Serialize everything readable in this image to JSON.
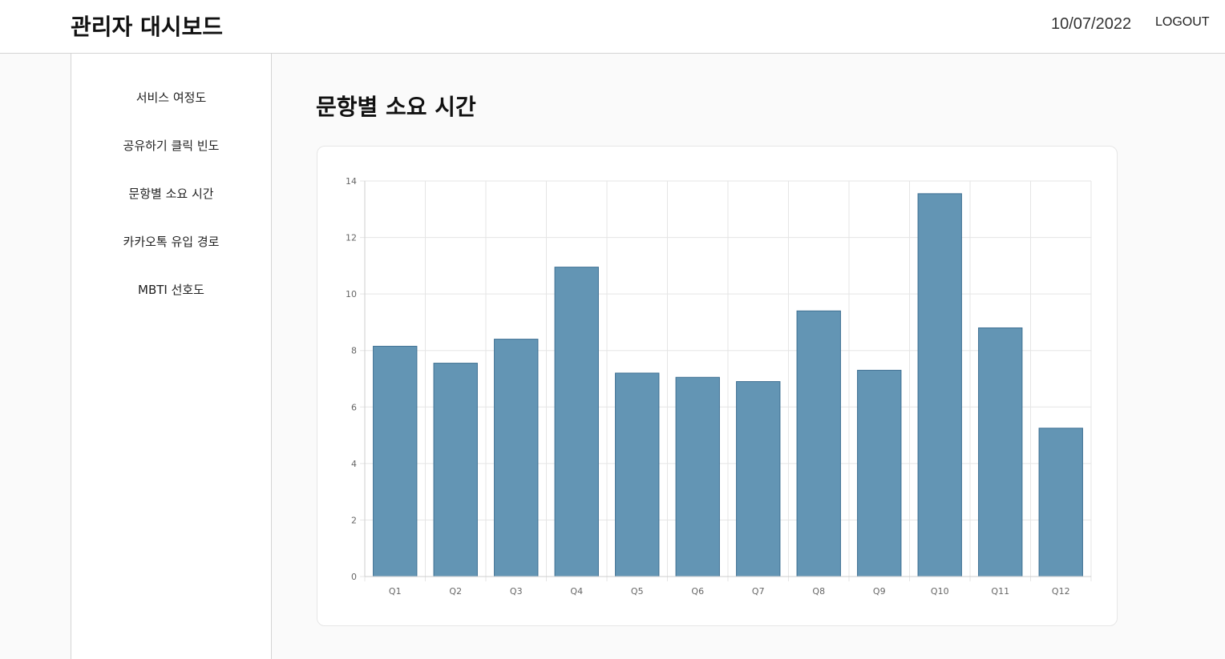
{
  "header": {
    "title": "관리자 대시보드",
    "date": "10/07/2022",
    "logout_label": "LOGOUT"
  },
  "sidebar": {
    "items": [
      {
        "label": "서비스 여정도"
      },
      {
        "label": "공유하기 클릭 빈도"
      },
      {
        "label": "문항별 소요 시간"
      },
      {
        "label": "카카오톡 유입 경로"
      },
      {
        "label": "MBTI 선호도"
      }
    ]
  },
  "main": {
    "title": "문항별 소요 시간"
  },
  "colors": {
    "bar_fill": "#6395b4",
    "bar_stroke": "#3f7193",
    "grid": "#e5e5e5"
  },
  "chart_data": {
    "type": "bar",
    "categories": [
      "Q1",
      "Q2",
      "Q3",
      "Q4",
      "Q5",
      "Q6",
      "Q7",
      "Q8",
      "Q9",
      "Q10",
      "Q11",
      "Q12"
    ],
    "values": [
      8.15,
      7.55,
      8.4,
      10.95,
      7.2,
      7.05,
      6.9,
      9.4,
      7.3,
      13.55,
      8.8,
      5.25
    ],
    "ylim": [
      0,
      14
    ],
    "yticks": [
      "0",
      "2",
      "4",
      "6",
      "8",
      "10",
      "12",
      "14"
    ],
    "grid": true,
    "legend": "none"
  }
}
